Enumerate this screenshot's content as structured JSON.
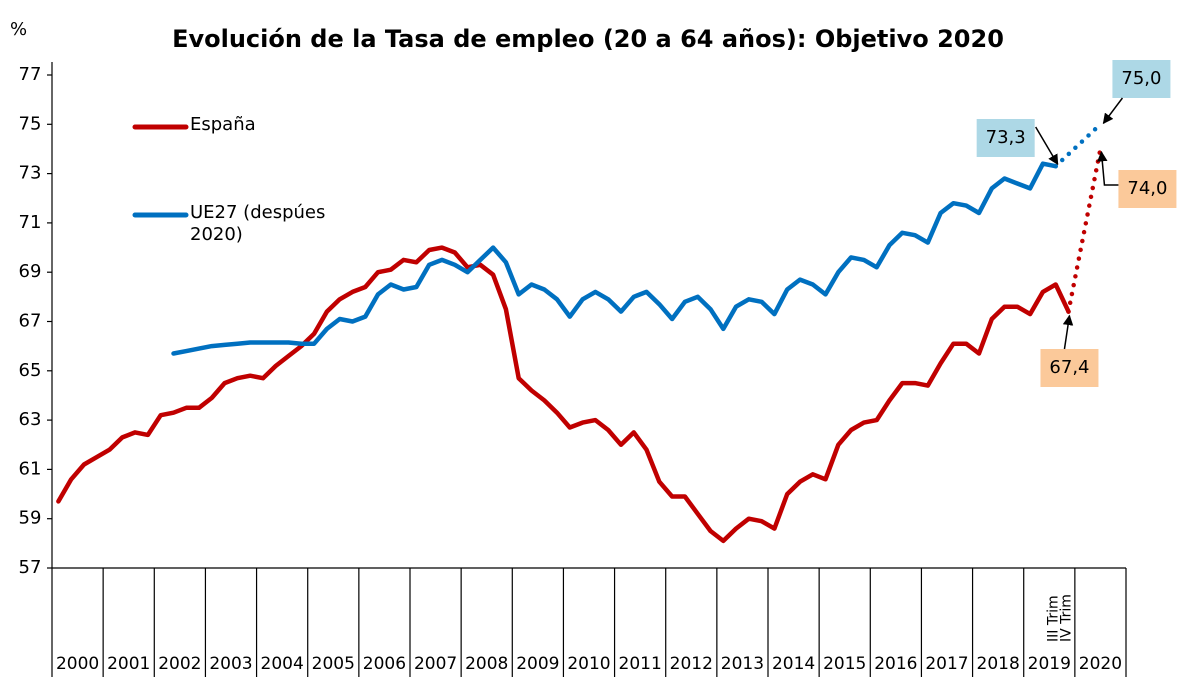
{
  "chart_data": {
    "type": "line",
    "title": "Evolución de la Tasa de empleo (20 a 64 años): Objetivo 2020",
    "y_label": "%",
    "ylim": [
      57,
      77
    ],
    "yticks": [
      57,
      59,
      61,
      63,
      65,
      67,
      69,
      71,
      73,
      75,
      77
    ],
    "xlim": [
      2000,
      2021
    ],
    "xticks": [
      2000,
      2001,
      2002,
      2003,
      2004,
      2005,
      2006,
      2007,
      2008,
      2009,
      2010,
      2011,
      2012,
      2013,
      2014,
      2015,
      2016,
      2017,
      2018,
      2019,
      2020,
      2021
    ],
    "categories": [
      "2000",
      "2001",
      "2002",
      "2003",
      "2004",
      "2005",
      "2006",
      "2007",
      "2008",
      "2009",
      "2010",
      "2011",
      "2012",
      "2013",
      "2014",
      "2015",
      "2016",
      "2017",
      "2018",
      "2019",
      "2020"
    ],
    "x": [
      2000.125,
      2000.375,
      2000.625,
      2000.875,
      2001.125,
      2001.375,
      2001.625,
      2001.875,
      2002.125,
      2002.375,
      2002.625,
      2002.875,
      2003.125,
      2003.375,
      2003.625,
      2003.875,
      2004.125,
      2004.375,
      2004.625,
      2004.875,
      2005.125,
      2005.375,
      2005.625,
      2005.875,
      2006.125,
      2006.375,
      2006.625,
      2006.875,
      2007.125,
      2007.375,
      2007.625,
      2007.875,
      2008.125,
      2008.375,
      2008.625,
      2008.875,
      2009.125,
      2009.375,
      2009.625,
      2009.875,
      2010.125,
      2010.375,
      2010.625,
      2010.875,
      2011.125,
      2011.375,
      2011.625,
      2011.875,
      2012.125,
      2012.375,
      2012.625,
      2012.875,
      2013.125,
      2013.375,
      2013.625,
      2013.875,
      2014.125,
      2014.375,
      2014.625,
      2014.875,
      2015.125,
      2015.375,
      2015.625,
      2015.875,
      2016.125,
      2016.375,
      2016.625,
      2016.875,
      2017.125,
      2017.375,
      2017.625,
      2017.875,
      2018.125,
      2018.375,
      2018.625,
      2018.875,
      2019.125,
      2019.375,
      2019.625,
      2019.875
    ],
    "series": [
      {
        "name": "España",
        "color": "#c00000",
        "values": [
          59.7,
          60.6,
          61.2,
          61.5,
          61.8,
          62.3,
          62.5,
          62.4,
          63.2,
          63.3,
          63.5,
          63.5,
          63.9,
          64.5,
          64.7,
          64.8,
          64.7,
          65.2,
          65.6,
          66.0,
          66.5,
          67.4,
          67.9,
          68.2,
          68.4,
          69.0,
          69.1,
          69.5,
          69.4,
          69.9,
          70.0,
          69.8,
          69.2,
          69.3,
          68.9,
          67.5,
          64.7,
          64.2,
          63.8,
          63.3,
          62.7,
          62.9,
          63.0,
          62.6,
          62.0,
          62.5,
          61.8,
          60.5,
          59.9,
          59.9,
          59.2,
          58.5,
          58.1,
          58.6,
          59.0,
          58.9,
          58.6,
          60.0,
          60.5,
          60.8,
          60.6,
          62.0,
          62.6,
          62.9,
          63.0,
          63.8,
          64.5,
          64.5,
          64.4,
          65.3,
          66.1,
          66.1,
          65.7,
          67.1,
          67.6,
          67.6,
          67.3,
          68.2,
          68.5,
          67.4
        ],
        "end_label": "67,4",
        "end_period": "IV Trim",
        "target": {
          "x": 2020.5,
          "value": 74.0,
          "label": "74,0"
        }
      },
      {
        "name": "UE27 (despúes 2020)",
        "color": "#0070c0",
        "values": [
          null,
          null,
          null,
          null,
          null,
          null,
          null,
          null,
          null,
          65.7,
          65.8,
          65.9,
          66.0,
          66.05,
          66.1,
          66.15,
          66.15,
          66.15,
          66.15,
          66.1,
          66.1,
          66.7,
          67.1,
          67.0,
          67.2,
          68.1,
          68.5,
          68.3,
          68.4,
          69.3,
          69.5,
          69.3,
          69.0,
          69.5,
          70.0,
          69.4,
          68.1,
          68.5,
          68.3,
          67.9,
          67.2,
          67.9,
          68.2,
          67.9,
          67.4,
          68.0,
          68.2,
          67.7,
          67.1,
          67.8,
          68.0,
          67.5,
          66.7,
          67.6,
          67.9,
          67.8,
          67.3,
          68.3,
          68.7,
          68.5,
          68.1,
          69.0,
          69.6,
          69.5,
          69.2,
          70.1,
          70.6,
          70.5,
          70.2,
          71.4,
          71.8,
          71.7,
          71.4,
          72.4,
          72.8,
          72.6,
          72.4,
          73.4,
          73.3,
          null
        ],
        "end_label": "73,3",
        "end_period": "III Trim",
        "target": {
          "x": 2020.5,
          "value": 75.0,
          "label": "75,0"
        }
      }
    ]
  }
}
